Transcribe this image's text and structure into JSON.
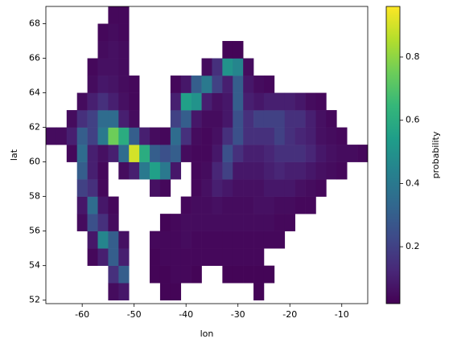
{
  "chart_data": {
    "type": "heatmap",
    "xlabel": "lon",
    "ylabel": "lat",
    "colorbar_label": "probability",
    "colormap": "viridis",
    "x_edges": [
      -67,
      -65,
      -63,
      -61,
      -59,
      -57,
      -55,
      -53,
      -51,
      -49,
      -47,
      -45,
      -43,
      -41,
      -39,
      -37,
      -35,
      -33,
      -31,
      -29,
      -27,
      -25,
      -23,
      -21,
      -19,
      -17,
      -15,
      -13,
      -11,
      -9,
      -7,
      -5
    ],
    "y_edges": [
      52,
      53,
      54,
      55,
      56,
      57,
      58,
      59,
      60,
      61,
      62,
      63,
      64,
      65,
      66,
      67,
      68,
      69
    ],
    "values": [
      [
        null,
        null,
        null,
        null,
        null,
        null,
        0.05,
        0.08,
        null,
        null,
        null,
        0.03,
        0.03,
        null,
        null,
        null,
        null,
        null,
        null,
        null,
        0.03,
        null,
        null,
        null,
        null,
        null,
        null,
        null,
        null,
        null,
        null
      ],
      [
        null,
        null,
        null,
        null,
        null,
        null,
        0.15,
        0.3,
        null,
        null,
        0.03,
        0.03,
        0.04,
        0.04,
        0.03,
        null,
        null,
        0.03,
        0.03,
        0.03,
        0.03,
        0.03,
        null,
        null,
        null,
        null,
        null,
        null,
        null,
        null,
        null
      ],
      [
        null,
        null,
        null,
        null,
        0.04,
        0.1,
        0.3,
        0.1,
        null,
        null,
        0.03,
        0.04,
        0.04,
        0.04,
        0.04,
        0.04,
        0.04,
        0.04,
        0.04,
        0.04,
        0.04,
        null,
        null,
        null,
        null,
        null,
        null,
        null,
        null,
        null,
        null
      ],
      [
        null,
        null,
        null,
        null,
        0.08,
        0.45,
        0.3,
        0.06,
        null,
        null,
        0.04,
        0.04,
        0.04,
        0.05,
        0.04,
        0.04,
        0.04,
        0.04,
        0.04,
        0.04,
        0.04,
        0.04,
        0.04,
        null,
        null,
        null,
        null,
        null,
        null,
        null,
        null
      ],
      [
        null,
        null,
        null,
        0.05,
        0.25,
        0.15,
        0.05,
        null,
        null,
        null,
        null,
        0.03,
        0.04,
        0.05,
        0.05,
        0.05,
        0.05,
        0.05,
        0.05,
        0.05,
        0.05,
        0.05,
        0.04,
        0.04,
        null,
        null,
        null,
        null,
        null,
        null,
        null
      ],
      [
        null,
        null,
        null,
        0.08,
        0.35,
        0.08,
        0.04,
        null,
        null,
        null,
        null,
        null,
        null,
        0.04,
        0.05,
        0.05,
        0.06,
        0.05,
        0.05,
        0.05,
        0.06,
        0.06,
        0.05,
        0.05,
        0.04,
        0.04,
        null,
        null,
        null,
        null,
        null
      ],
      [
        null,
        null,
        null,
        0.2,
        0.15,
        0.04,
        null,
        null,
        null,
        null,
        0.06,
        0.04,
        null,
        null,
        0.04,
        0.06,
        0.1,
        0.08,
        0.06,
        0.06,
        0.06,
        0.08,
        0.08,
        0.08,
        0.06,
        0.05,
        0.04,
        null,
        null,
        null,
        null
      ],
      [
        null,
        null,
        null,
        0.3,
        0.1,
        0.04,
        null,
        0.05,
        0.1,
        0.4,
        0.55,
        0.4,
        0.08,
        null,
        0.04,
        0.05,
        0.12,
        0.2,
        0.08,
        0.08,
        0.08,
        0.1,
        0.12,
        0.1,
        0.1,
        0.08,
        0.06,
        0.05,
        0.04,
        null,
        null
      ],
      [
        null,
        null,
        0.04,
        0.35,
        0.1,
        0.06,
        0.1,
        0.35,
        0.9,
        0.6,
        0.3,
        0.25,
        0.3,
        0.05,
        0.04,
        0.04,
        0.08,
        0.25,
        0.15,
        0.1,
        0.1,
        0.12,
        0.15,
        0.15,
        0.15,
        0.12,
        0.08,
        0.06,
        0.05,
        0.05,
        0.04
      ],
      [
        0.05,
        0.05,
        0.1,
        0.3,
        0.2,
        0.4,
        0.75,
        0.6,
        0.3,
        0.1,
        0.05,
        0.04,
        0.35,
        0.15,
        0.05,
        0.04,
        0.06,
        0.15,
        0.25,
        0.15,
        0.15,
        0.15,
        0.2,
        0.15,
        0.12,
        0.1,
        0.06,
        0.05,
        0.04,
        null,
        null
      ],
      [
        null,
        null,
        0.05,
        0.15,
        0.2,
        0.35,
        0.35,
        0.1,
        0.05,
        null,
        null,
        null,
        0.2,
        0.3,
        0.08,
        0.05,
        0.05,
        0.08,
        0.25,
        0.15,
        0.2,
        0.2,
        0.2,
        0.15,
        0.15,
        0.1,
        0.06,
        0.04,
        null,
        null,
        null
      ],
      [
        null,
        null,
        null,
        0.05,
        0.1,
        0.15,
        0.1,
        0.06,
        0.04,
        null,
        null,
        null,
        0.1,
        0.55,
        0.5,
        0.1,
        0.06,
        0.08,
        0.3,
        0.1,
        0.08,
        0.1,
        0.1,
        0.1,
        0.08,
        0.05,
        0.04,
        null,
        null,
        null,
        null
      ],
      [
        null,
        null,
        null,
        null,
        0.05,
        0.08,
        0.07,
        0.05,
        0.04,
        null,
        null,
        null,
        0.04,
        0.08,
        0.3,
        0.4,
        0.2,
        0.1,
        0.3,
        0.08,
        0.05,
        0.04,
        null,
        null,
        null,
        null,
        null,
        null,
        null,
        null,
        null
      ],
      [
        null,
        null,
        null,
        null,
        0.04,
        0.06,
        0.06,
        0.05,
        null,
        null,
        null,
        null,
        null,
        null,
        null,
        0.05,
        0.15,
        0.5,
        0.45,
        0.05,
        null,
        null,
        null,
        null,
        null,
        null,
        null,
        null,
        null,
        null,
        null
      ],
      [
        null,
        null,
        null,
        null,
        null,
        0.05,
        0.06,
        0.05,
        null,
        null,
        null,
        null,
        null,
        null,
        null,
        null,
        null,
        0.03,
        0.03,
        null,
        null,
        null,
        null,
        null,
        null,
        null,
        null,
        null,
        null,
        null,
        null
      ],
      [
        null,
        null,
        null,
        null,
        null,
        0.04,
        0.05,
        0.04,
        null,
        null,
        null,
        null,
        null,
        null,
        null,
        null,
        null,
        null,
        null,
        null,
        null,
        null,
        null,
        null,
        null,
        null,
        null,
        null,
        null,
        null,
        null
      ],
      [
        null,
        null,
        null,
        null,
        null,
        null,
        0.04,
        0.04,
        null,
        null,
        null,
        null,
        null,
        null,
        null,
        null,
        null,
        null,
        null,
        null,
        null,
        null,
        null,
        null,
        null,
        null,
        null,
        null,
        null,
        null,
        null
      ]
    ],
    "xlim": [
      -67,
      -5
    ],
    "ylim": [
      51.8,
      69
    ],
    "xticks": [
      -60,
      -50,
      -40,
      -30,
      -20,
      -10
    ],
    "yticks": [
      52,
      54,
      56,
      58,
      60,
      62,
      64,
      66,
      68
    ],
    "clim": [
      0.02,
      0.96
    ],
    "cticks": [
      0.2,
      0.4,
      0.6,
      0.8
    ]
  }
}
